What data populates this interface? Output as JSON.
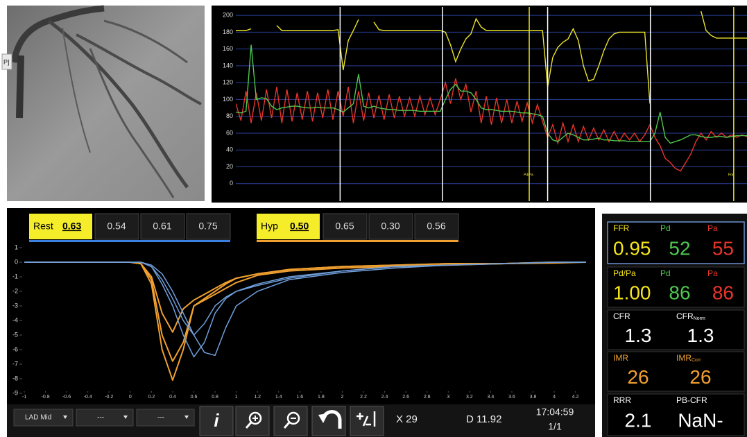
{
  "angiogram": {
    "tag": "P]"
  },
  "pressure_chart": {
    "type": "line",
    "xlim": [
      0,
      100
    ],
    "ylim": [
      -20,
      210
    ],
    "yticks": [
      0,
      20,
      40,
      60,
      80,
      100,
      120,
      140,
      160,
      180,
      200
    ],
    "grid": true,
    "x": [
      0,
      1,
      2,
      3,
      4,
      5,
      6,
      7,
      8,
      9,
      10,
      11,
      12,
      13,
      14,
      15,
      16,
      17,
      18,
      19,
      20,
      21,
      22,
      23,
      24,
      25,
      26,
      27,
      28,
      29,
      30,
      31,
      32,
      33,
      34,
      35,
      36,
      37,
      38,
      39,
      40,
      41,
      42,
      43,
      44,
      45,
      46,
      47,
      48,
      49,
      50,
      51,
      52,
      53,
      54,
      55,
      56,
      57,
      58,
      59,
      60,
      61,
      62,
      63,
      64,
      65,
      66,
      67,
      68,
      69,
      70,
      71,
      72,
      73,
      74,
      75,
      76,
      77,
      78,
      79,
      80,
      81,
      82,
      83,
      84,
      85,
      86,
      87,
      88,
      89,
      90,
      91,
      92,
      93,
      94,
      95,
      96,
      97,
      98,
      99,
      100
    ],
    "series": [
      {
        "color": "#ece42a",
        "values": [
          182,
          182,
          182,
          184,
          null,
          null,
          null,
          null,
          188,
          182,
          182,
          182,
          182,
          182,
          182,
          182,
          182,
          182,
          182,
          182,
          183,
          135,
          170,
          182,
          195,
          null,
          null,
          192,
          183,
          182,
          182,
          182,
          182,
          182,
          182,
          182,
          182,
          182,
          182,
          182,
          182,
          180,
          165,
          145,
          160,
          172,
          178,
          196,
          186,
          182,
          182,
          182,
          182,
          182,
          182,
          182,
          182,
          182,
          182,
          182,
          182,
          115,
          150,
          162,
          168,
          172,
          184,
          170,
          140,
          122,
          124,
          140,
          158,
          172,
          178,
          180,
          180,
          180,
          180,
          180,
          180,
          95,
          null,
          null,
          null,
          null,
          null,
          null,
          null,
          null,
          null,
          205,
          182,
          176,
          173,
          173,
          173,
          173,
          173,
          173,
          173
        ]
      },
      {
        "color": "#e8352a",
        "values": [
          95,
          75,
          110,
          72,
          108,
          75,
          112,
          78,
          115,
          72,
          112,
          74,
          108,
          76,
          110,
          74,
          108,
          78,
          112,
          76,
          110,
          80,
          115,
          72,
          110,
          75,
          108,
          78,
          105,
          76,
          106,
          78,
          104,
          80,
          102,
          80,
          104,
          82,
          102,
          82,
          100,
          120,
          95,
          125,
          100,
          118,
          85,
          110,
          72,
          104,
          70,
          102,
          72,
          100,
          72,
          98,
          74,
          96,
          72,
          94,
          74,
          55,
          70,
          48,
          72,
          50,
          70,
          50,
          68,
          52,
          66,
          52,
          64,
          50,
          62,
          50,
          60,
          52,
          60,
          50,
          58,
          70,
          55,
          45,
          30,
          25,
          18,
          15,
          25,
          35,
          50,
          60,
          52,
          62,
          55,
          60,
          55,
          58,
          55,
          58,
          56
        ]
      },
      {
        "color": "#4ec94e",
        "values": [
          85,
          84,
          86,
          165,
          100,
          102,
          101,
          92,
          88,
          90,
          91,
          92,
          92,
          91,
          90,
          90,
          91,
          90,
          90,
          90,
          88,
          85,
          90,
          95,
          130,
          92,
          90,
          92,
          90,
          89,
          88,
          88,
          87,
          87,
          87,
          87,
          86,
          86,
          86,
          86,
          86,
          100,
          112,
          118,
          110,
          110,
          108,
          100,
          90,
          88,
          88,
          87,
          86,
          86,
          86,
          85,
          84,
          84,
          83,
          82,
          80,
          60,
          52,
          50,
          55,
          60,
          58,
          55,
          52,
          52,
          53,
          54,
          52,
          52,
          51,
          51,
          51,
          50,
          50,
          50,
          50,
          50,
          60,
          85,
          55,
          48,
          50,
          52,
          55,
          58,
          58,
          56,
          55,
          55,
          56,
          56,
          55,
          56,
          57,
          57,
          57
        ]
      }
    ],
    "markers": [
      {
        "x": 20.4,
        "color": "#ffffff"
      },
      {
        "x": 40.4,
        "color": "#ffffff"
      },
      {
        "x": 57.4,
        "color": "#e8e020",
        "label": "Pd/Pa"
      },
      {
        "x": 61,
        "color": "#ffffff"
      },
      {
        "x": 81.1,
        "color": "#ffffff"
      },
      {
        "x": 97.4,
        "color": "#e8e020",
        "label": "Pd/"
      }
    ]
  },
  "tabs": {
    "rest": {
      "label": "Rest",
      "values": [
        "0.63",
        "0.54",
        "0.61",
        "0.75"
      ],
      "color": "#3b7fe0"
    },
    "hyp": {
      "label": "Hyp",
      "values": [
        "0.50",
        "0.65",
        "0.30",
        "0.56"
      ],
      "color": "#f0a030"
    }
  },
  "thermo_chart": {
    "type": "line",
    "xlim": [
      -1,
      4.32
    ],
    "ylim": [
      -9.5,
      1.5
    ],
    "xticks": [
      -1,
      -0.8,
      -0.6,
      -0.4,
      -0.2,
      0,
      0.2,
      0.4,
      0.6,
      0.8,
      1,
      1.2,
      1.4,
      1.6,
      1.8,
      2,
      2.2,
      2.4,
      2.6,
      2.8,
      3,
      3.2,
      3.4,
      3.6,
      3.8,
      4,
      4.2
    ],
    "yticks": [
      1,
      0,
      -1,
      -2,
      -3,
      -4,
      -5,
      -6,
      -7,
      -8,
      -9
    ],
    "x": [
      -1,
      0,
      0.1,
      0.2,
      0.3,
      0.4,
      0.5,
      0.6,
      0.7,
      0.8,
      0.9,
      1,
      1.2,
      1.5,
      2,
      2.5,
      3,
      3.5,
      4,
      4.3
    ],
    "series": [
      {
        "color": "#f0a030",
        "values": [
          0,
          0,
          -0.1,
          -1.5,
          -6,
          -8.1,
          -6,
          -3,
          -2.6,
          -2.2,
          -1.8,
          -1.4,
          -0.9,
          -0.6,
          -0.4,
          -0.3,
          -0.2,
          -0.1,
          -0.05,
          0
        ]
      },
      {
        "color": "#f0a030",
        "values": [
          0,
          0,
          -0.1,
          -1.2,
          -5,
          -6.8,
          -5.5,
          -3,
          -2.5,
          -2,
          -1.5,
          -1.1,
          -0.8,
          -0.5,
          -0.3,
          -0.2,
          -0.1,
          -0.1,
          0,
          0
        ]
      },
      {
        "color": "#f0a030",
        "values": [
          0,
          0,
          -0.1,
          -1,
          -3.5,
          -4.8,
          -3.2,
          -2.6,
          -2.2,
          -1.8,
          -1.4,
          -1.1,
          -0.8,
          -0.5,
          -0.3,
          -0.2,
          -0.1,
          -0.1,
          0,
          0
        ]
      },
      {
        "color": "#6f9fdc",
        "values": [
          0,
          0,
          0,
          -0.3,
          -1.5,
          -3,
          -5,
          -6.5,
          -5.5,
          -3.5,
          -2.5,
          -2,
          -1.5,
          -1,
          -0.6,
          -0.3,
          -0.2,
          -0.1,
          0,
          0
        ]
      },
      {
        "color": "#6f9fdc",
        "values": [
          0,
          0,
          0,
          -0.2,
          -0.8,
          -2,
          -3.5,
          -5,
          -6.2,
          -6.4,
          -4.5,
          -3,
          -2,
          -1.2,
          -0.7,
          -0.4,
          -0.2,
          -0.1,
          0,
          0
        ]
      },
      {
        "color": "#6f9fdc",
        "values": [
          0,
          0,
          0,
          -0.3,
          -1.2,
          -2.5,
          -4,
          -5,
          -4.2,
          -3,
          -2.4,
          -2,
          -1.6,
          -1.1,
          -0.6,
          -0.3,
          -0.2,
          -0.1,
          0,
          0
        ]
      }
    ]
  },
  "toolbar": {
    "dropdowns": [
      "LAD Mid",
      "---",
      "---"
    ],
    "info": "i",
    "x_value": "X 29",
    "d_value": "D 11.92",
    "time": "17:04:59",
    "page": "1/1"
  },
  "results": [
    {
      "cells": [
        {
          "label": "FFR",
          "value": "0.95",
          "color": "#f5e61e"
        },
        {
          "label": "Pd",
          "value": "52",
          "color": "#4ec94e"
        },
        {
          "label": "Pa",
          "value": "55",
          "color": "#e8352a"
        }
      ]
    },
    {
      "cells": [
        {
          "label": "Pd/Pa",
          "value": "1.00",
          "color": "#f5e61e"
        },
        {
          "label": "Pd",
          "value": "86",
          "color": "#4ec94e"
        },
        {
          "label": "Pa",
          "value": "86",
          "color": "#e8352a"
        }
      ]
    },
    {
      "cells": [
        {
          "label": "CFR",
          "value": "1.3",
          "color": "#ffffff"
        },
        {
          "label": "CFR",
          "sub": "Norm",
          "value": "1.3",
          "color": "#ffffff"
        }
      ]
    },
    {
      "cells": [
        {
          "label": "IMR",
          "value": "26",
          "color": "#f0a030"
        },
        {
          "label": "IMR",
          "sub": "Corr",
          "value": "26",
          "color": "#f0a030"
        }
      ]
    },
    {
      "cells": [
        {
          "label": "RRR",
          "value": "2.1",
          "color": "#ffffff"
        },
        {
          "label": "PB-CFR",
          "value": "NaN-",
          "color": "#ffffff"
        }
      ]
    }
  ]
}
